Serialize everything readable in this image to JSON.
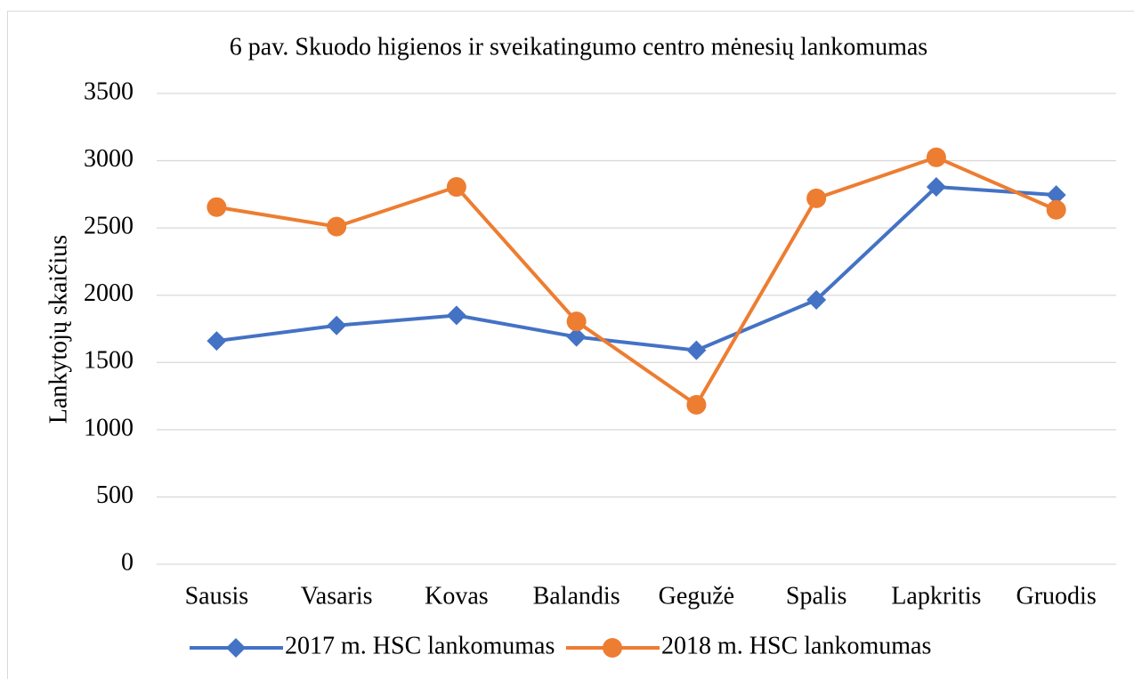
{
  "chart_data": {
    "type": "line",
    "title": "6 pav. Skuodo higienos ir sveikatingumo centro mėnesių lankomumas",
    "y_label": "Lankytojų skaičius",
    "categories": [
      "Sausis",
      "Vasaris",
      "Kovas",
      "Balandis",
      "Gegužė",
      "Spalis",
      "Lapkritis",
      "Gruodis"
    ],
    "series": [
      {
        "name": "2017 m. HSC lankomumas",
        "color": "#4472c4",
        "marker": "diamond",
        "values": [
          1660,
          1775,
          1850,
          1690,
          1590,
          1965,
          2805,
          2745
        ]
      },
      {
        "name": "2018 m. HSC lankomumas",
        "color": "#ed7d31",
        "marker": "circle",
        "values": [
          2655,
          2510,
          2805,
          1805,
          1185,
          2720,
          3025,
          2635
        ]
      }
    ],
    "ylim": [
      0,
      3500
    ],
    "yticks": [
      0,
      500,
      1000,
      1500,
      2000,
      2500,
      3000,
      3500
    ],
    "grid": true,
    "legend": "bottom"
  }
}
